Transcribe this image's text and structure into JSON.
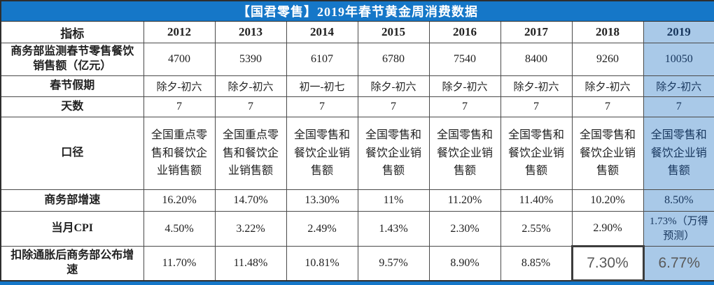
{
  "title": "【国君零售】2019年春节黄金周消费数据",
  "table": {
    "columns": [
      "指标",
      "2012",
      "2013",
      "2014",
      "2015",
      "2016",
      "2017",
      "2018",
      "2019"
    ],
    "rows": [
      {
        "label": "商务部监测春节零售餐饮销售额（亿元）",
        "values": [
          "4700",
          "5390",
          "6107",
          "6780",
          "7540",
          "8400",
          "9260",
          "10050"
        ]
      },
      {
        "label": "春节假期",
        "values": [
          "除夕-初六",
          "除夕-初六",
          "初一-初七",
          "除夕-初六",
          "除夕-初六",
          "除夕-初六",
          "除夕-初六",
          "除夕-初六"
        ]
      },
      {
        "label": "天数",
        "values": [
          "7",
          "7",
          "7",
          "7",
          "7",
          "7",
          "7",
          "7"
        ]
      },
      {
        "label": "口径",
        "values": [
          "全国重点零售和餐饮企业销售额",
          "全国重点零售和餐饮企业销售额",
          "全国零售和餐饮企业销售额",
          "全国零售和餐饮企业销售额",
          "全国零售和餐饮企业销售额",
          "全国零售和餐饮企业销售额",
          "全国零售和餐饮企业销售额",
          "全国零售和餐饮企业销售额"
        ]
      },
      {
        "label": "商务部增速",
        "values": [
          "16.20%",
          "14.70%",
          "13.30%",
          "11%",
          "11.20%",
          "11.40%",
          "10.20%",
          "8.50%"
        ]
      },
      {
        "label": "当月CPI",
        "values": [
          "4.50%",
          "3.22%",
          "2.49%",
          "1.43%",
          "2.30%",
          "2.55%",
          "2.90%",
          "1.73%（万得预测）"
        ]
      },
      {
        "label": "扣除通胀后商务部公布增速",
        "values": [
          "11.70%",
          "11.48%",
          "10.81%",
          "9.57%",
          "8.90%",
          "8.85%",
          "7.30%",
          "6.77%"
        ]
      }
    ],
    "selected_cell": {
      "row": 6,
      "col": 6
    },
    "overlay_cells": [
      {
        "row": 6,
        "col": 6
      },
      {
        "row": 6,
        "col": 7
      }
    ]
  },
  "colors": {
    "title_bg": "#1577C8",
    "title_text": "#FFFFFF",
    "highlight_column_bg": "#A9C9E8",
    "highlight_column_text": "#17365D",
    "grid_border": "#4A4A4A",
    "outer_border": "#2E2E2E",
    "body_text": "#212121",
    "overlay_text": "#595959",
    "bottom_bar": "#1577C8"
  }
}
